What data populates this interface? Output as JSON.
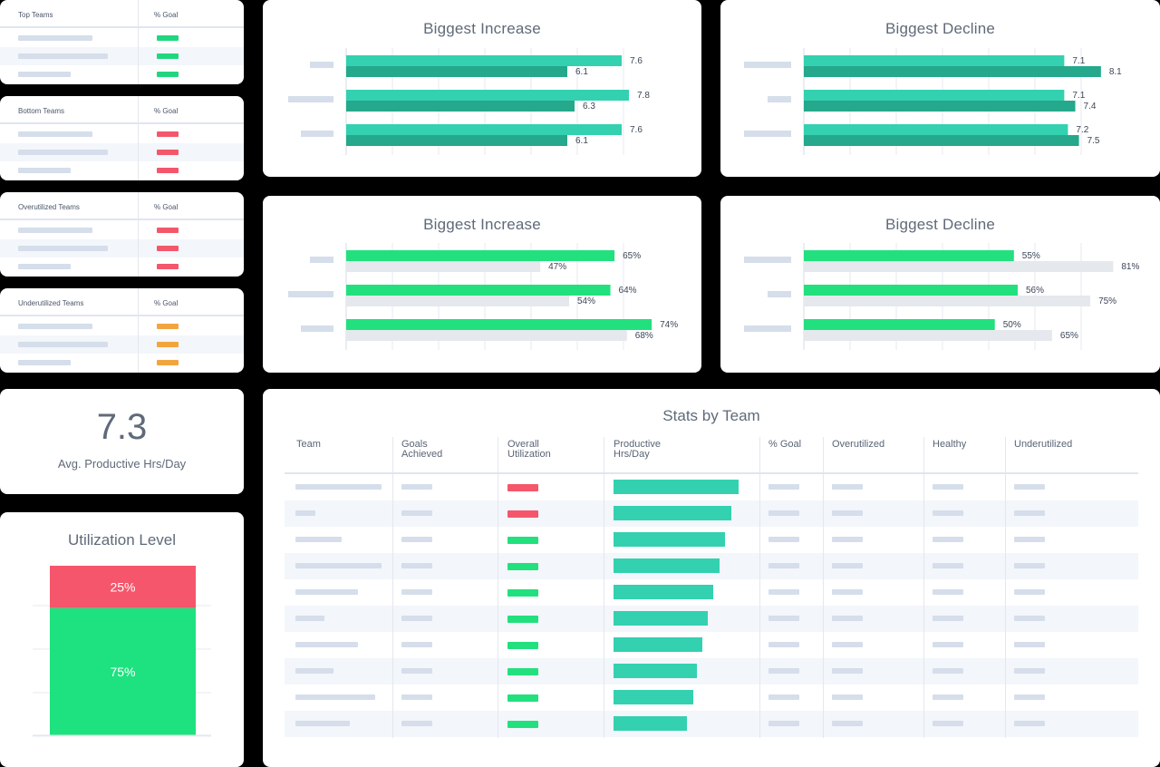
{
  "team_lists": [
    {
      "title": "Top Teams",
      "goal_label": "% Goal",
      "status_color": "#22d67f"
    },
    {
      "title": "Bottom Teams",
      "goal_label": "% Goal",
      "status_color": "#f3576b"
    },
    {
      "title": "Overutilized Teams",
      "goal_label": "% Goal",
      "status_color": "#f3576b"
    },
    {
      "title": "Underutilized Teams",
      "goal_label": "% Goal",
      "status_color": "#f2a53f"
    }
  ],
  "avg_card": {
    "value": "7.3",
    "label": "Avg. Productive Hrs/Day"
  },
  "utilization": {
    "title": "Utilization Level",
    "segments": [
      {
        "label": "25%",
        "value": 25,
        "color": "#f5566b"
      },
      {
        "label": "75%",
        "value": 75,
        "color": "#1de27f"
      }
    ]
  },
  "charts": {
    "hrs_increase": {
      "title": "Biggest Increase",
      "chart_data": {
        "type": "bar",
        "orientation": "horizontal",
        "categories_hidden": true,
        "series": [
          {
            "values": [
              7.6,
              7.8,
              7.6
            ],
            "labels": [
              "7.6",
              "7.8",
              "7.6"
            ],
            "color": "#33d1b0"
          },
          {
            "values": [
              6.1,
              6.3,
              6.1
            ],
            "labels": [
              "6.1",
              "6.3",
              "6.1"
            ],
            "color": "#25a88c"
          }
        ],
        "xlim": [
          0,
          9
        ]
      }
    },
    "hrs_decline": {
      "title": "Biggest Decline",
      "chart_data": {
        "type": "bar",
        "orientation": "horizontal",
        "categories_hidden": true,
        "series": [
          {
            "values": [
              7.1,
              7.1,
              7.2
            ],
            "labels": [
              "7.1",
              "7.1",
              "7.2"
            ],
            "color": "#33d1b0"
          },
          {
            "values": [
              8.1,
              7.4,
              7.5
            ],
            "labels": [
              "8.1",
              "7.4",
              "7.5"
            ],
            "color": "#25a88c"
          }
        ],
        "xlim": [
          0,
          8.4
        ]
      }
    },
    "goal_increase": {
      "title": "Biggest Increase",
      "chart_data": {
        "type": "bar",
        "orientation": "horizontal",
        "categories_hidden": true,
        "series": [
          {
            "values": [
              65,
              64,
              74
            ],
            "labels": [
              "65%",
              "64%",
              "74%"
            ],
            "color": "#22e07e"
          },
          {
            "values": [
              47,
              54,
              68
            ],
            "labels": [
              "47%",
              "54%",
              "68%"
            ],
            "color": "#e5e8ed"
          }
        ],
        "xlim": [
          0,
          90
        ]
      }
    },
    "goal_decline": {
      "title": "Biggest Decline",
      "chart_data": {
        "type": "bar",
        "orientation": "horizontal",
        "categories_hidden": true,
        "series": [
          {
            "values": [
              55,
              56,
              50
            ],
            "labels": [
              "55%",
              "56%",
              "50%"
            ],
            "color": "#22e07e"
          },
          {
            "values": [
              81,
              75,
              65
            ],
            "labels": [
              "81%",
              "75%",
              "65%"
            ],
            "color": "#e5e8ed"
          }
        ],
        "xlim": [
          0,
          84
        ]
      }
    }
  },
  "stats": {
    "title": "Stats by Team",
    "columns": [
      {
        "line1": "Team",
        "line2": ""
      },
      {
        "line1": "Goals",
        "line2": "Achieved"
      },
      {
        "line1": "Overall",
        "line2": "Utilization"
      },
      {
        "line1": "Productive",
        "line2": "Hrs/Day"
      },
      {
        "line1": "% Goal",
        "line2": ""
      },
      {
        "line1": "Overutilized",
        "line2": ""
      },
      {
        "line1": "Healthy",
        "line2": ""
      },
      {
        "line1": "Underutilized",
        "line2": ""
      }
    ],
    "rows": [
      {
        "utilization_status": "over",
        "productive_hrs_bar": 1.0
      },
      {
        "utilization_status": "over",
        "productive_hrs_bar": 0.94
      },
      {
        "utilization_status": "healthy",
        "productive_hrs_bar": 0.89
      },
      {
        "utilization_status": "healthy",
        "productive_hrs_bar": 0.85
      },
      {
        "utilization_status": "healthy",
        "productive_hrs_bar": 0.8
      },
      {
        "utilization_status": "healthy",
        "productive_hrs_bar": 0.75
      },
      {
        "utilization_status": "healthy",
        "productive_hrs_bar": 0.71
      },
      {
        "utilization_status": "healthy",
        "productive_hrs_bar": 0.67
      },
      {
        "utilization_status": "healthy",
        "productive_hrs_bar": 0.64
      },
      {
        "utilization_status": "healthy",
        "productive_hrs_bar": 0.59
      }
    ],
    "status_colors": {
      "over": "#f5566b",
      "healthy": "#22e07e"
    },
    "bar_color": "#33d1b0"
  }
}
